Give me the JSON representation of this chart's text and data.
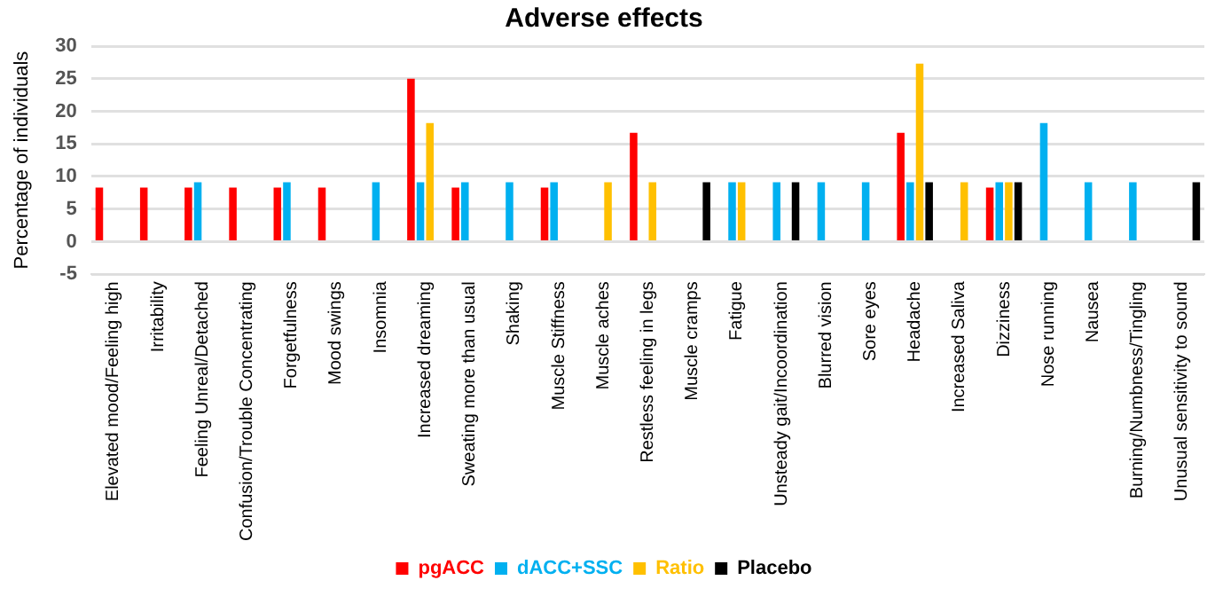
{
  "chart_data": {
    "type": "bar",
    "title": "Adverse effects",
    "ylabel": "Percentage of individuals",
    "categories": [
      "Elevated mood/Feeling high",
      "Irritability",
      "Feeling Unreal/Detached",
      "Confusion/Trouble Concentrating",
      "Forgetfulness",
      "Mood swings",
      "Insomnia",
      "Increased dreaming",
      "Sweating more than usual",
      "Shaking",
      "Muscle Stiffness",
      "Muscle aches",
      "Restless feeling in legs",
      "Muscle cramps",
      "Fatigue",
      "Unsteady gait/Incoordination",
      "Blurred vision",
      "Sore eyes",
      "Headache",
      "Increased Saliva",
      "Dizziness",
      "Nose running",
      "Nausea",
      "Burning/Numbness/Tingling",
      "Unusual sensitivity to sound"
    ],
    "series": [
      {
        "name": "pgACC",
        "color": "#ff0000",
        "values": [
          8.3,
          8.3,
          8.3,
          8.3,
          8.3,
          8.3,
          0,
          25,
          8.3,
          0,
          8.3,
          0,
          16.7,
          0,
          0,
          0,
          0,
          0,
          16.7,
          0,
          8.3,
          0,
          0,
          0,
          0
        ]
      },
      {
        "name": "dACC+SSC",
        "color": "#00b0f0",
        "values": [
          0,
          0,
          9.1,
          0,
          9.1,
          0,
          9.1,
          9.1,
          9.1,
          9.1,
          9.1,
          0,
          0,
          0,
          9.1,
          9.1,
          9.1,
          9.1,
          9.1,
          0,
          9.1,
          18.2,
          9.1,
          9.1,
          0
        ]
      },
      {
        "name": "Ratio",
        "color": "#ffc000",
        "values": [
          0,
          0,
          0,
          0,
          0,
          0,
          0,
          18.2,
          0,
          0,
          0,
          9.1,
          9.1,
          0,
          9.1,
          0,
          0,
          0,
          27.3,
          9.1,
          9.1,
          0,
          0,
          0,
          0
        ]
      },
      {
        "name": "Placebo",
        "color": "#000000",
        "values": [
          0,
          0,
          0,
          0,
          0,
          0,
          0,
          0,
          0,
          0,
          0,
          0,
          0,
          9.1,
          0,
          9.1,
          0,
          0,
          9.1,
          0,
          9.1,
          0,
          0,
          0,
          9.1
        ]
      }
    ],
    "ylim": [
      -5,
      30
    ],
    "yticks": [
      -5,
      0,
      5,
      10,
      15,
      20,
      25,
      30
    ],
    "grid": "y",
    "legend": "bottom"
  }
}
